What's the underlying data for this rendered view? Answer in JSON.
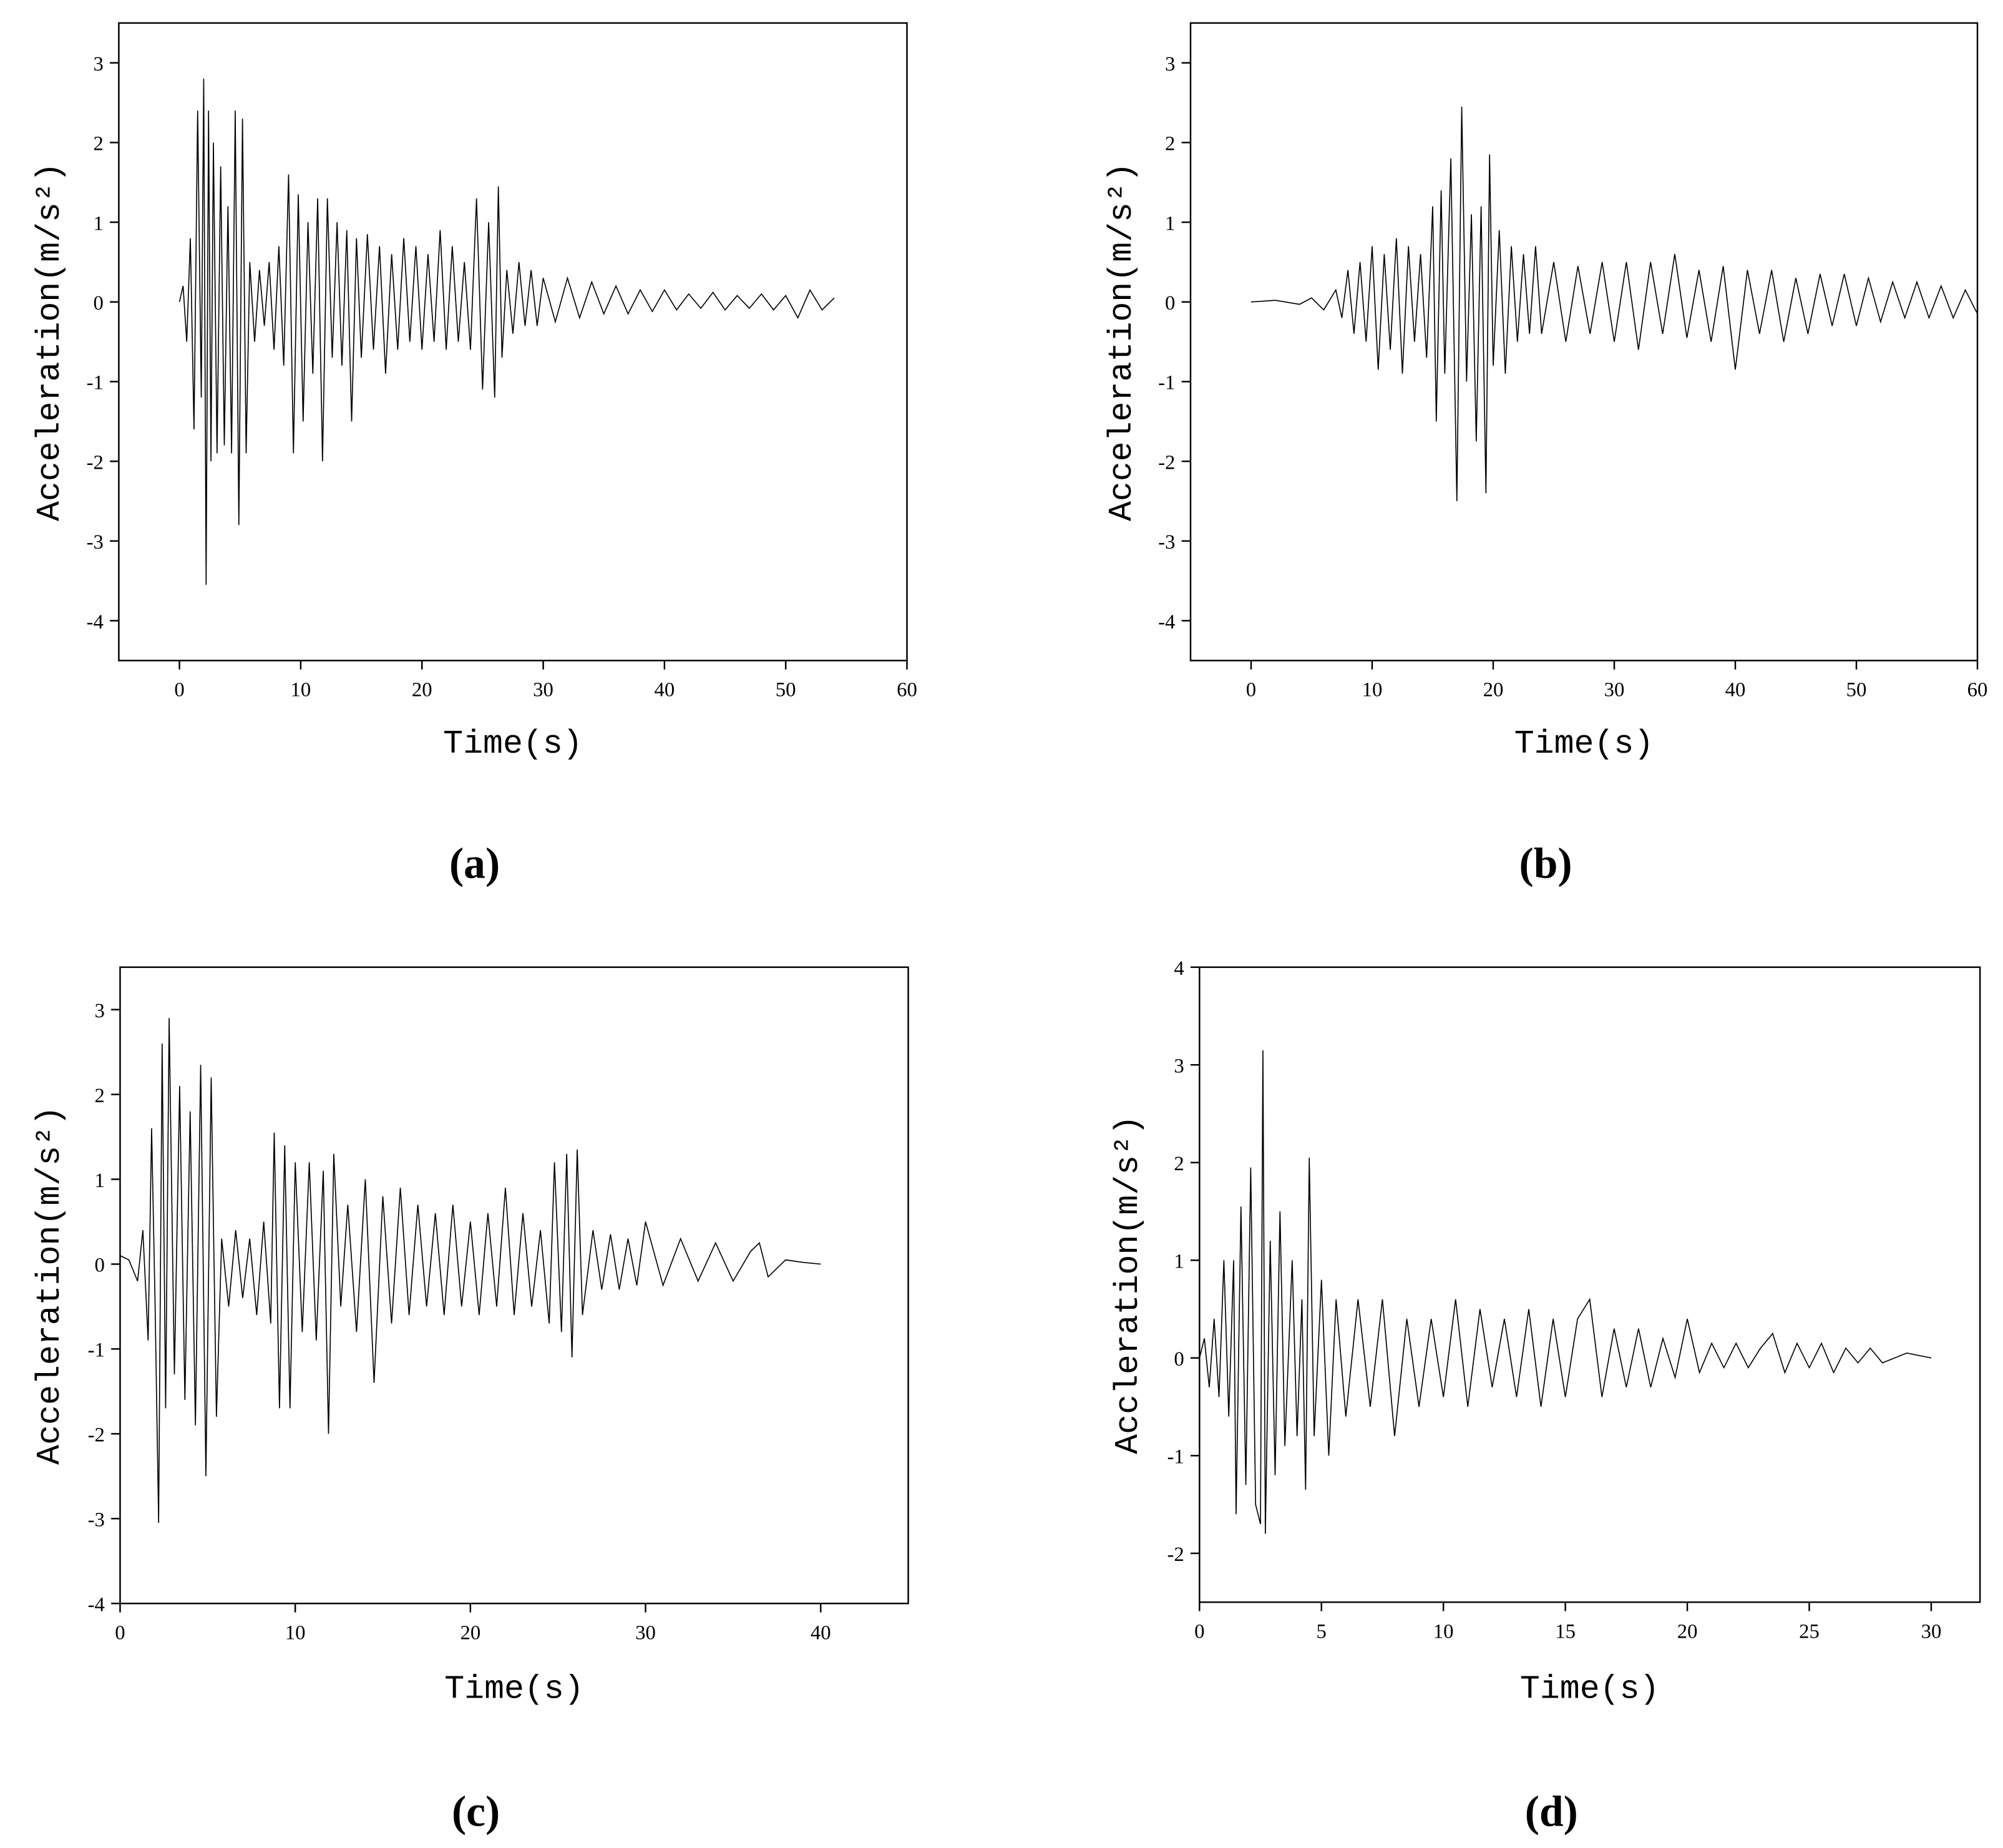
{
  "chart_data": [
    {
      "type": "line",
      "panel_label": "(a)",
      "xlabel": "Time(s)",
      "ylabel": "Acceleration(m/s²)",
      "xlim": [
        -5,
        60
      ],
      "ylim": [
        -4.5,
        3.5
      ],
      "xticks": [
        0,
        10,
        20,
        30,
        40,
        50,
        60
      ],
      "yticks": [
        -4,
        -3,
        -2,
        -1,
        0,
        1,
        2,
        3
      ],
      "x": [
        0,
        0.3,
        0.6,
        0.9,
        1.2,
        1.5,
        1.8,
        2.0,
        2.2,
        2.4,
        2.6,
        2.8,
        3.1,
        3.4,
        3.7,
        4.0,
        4.3,
        4.6,
        4.9,
        5.2,
        5.5,
        5.8,
        6.2,
        6.6,
        7.0,
        7.4,
        7.8,
        8.2,
        8.6,
        9.0,
        9.4,
        9.8,
        10.2,
        10.6,
        11.0,
        11.4,
        11.8,
        12.2,
        12.6,
        13.0,
        13.4,
        13.8,
        14.2,
        14.6,
        15.0,
        15.5,
        16,
        16.5,
        17,
        17.5,
        18,
        18.5,
        19,
        19.5,
        20,
        20.5,
        21,
        21.5,
        22,
        22.5,
        23,
        23.5,
        24,
        24.5,
        25,
        25.5,
        26,
        26.3,
        26.6,
        27,
        27.5,
        28,
        28.5,
        29,
        29.5,
        30,
        31,
        32,
        33,
        34,
        35,
        36,
        37,
        38,
        39,
        40,
        41,
        42,
        43,
        44,
        45,
        46,
        47,
        48,
        49,
        50,
        51,
        52,
        53,
        54
      ],
      "series": [
        {
          "color": "#000000",
          "values": [
            0,
            0.2,
            -0.5,
            0.8,
            -1.6,
            2.4,
            -1.2,
            2.8,
            -3.55,
            2.4,
            -2.0,
            2.0,
            -1.9,
            1.7,
            -1.8,
            1.2,
            -1.9,
            2.4,
            -2.8,
            2.3,
            -1.9,
            0.5,
            -0.5,
            0.4,
            -0.3,
            0.5,
            -0.6,
            0.7,
            -0.8,
            1.6,
            -1.9,
            1.35,
            -1.5,
            1.0,
            -0.9,
            1.3,
            -2.0,
            1.3,
            -0.7,
            1.0,
            -0.8,
            0.9,
            -1.5,
            0.8,
            -0.7,
            0.85,
            -0.6,
            0.7,
            -0.9,
            0.6,
            -0.6,
            0.8,
            -0.5,
            0.7,
            -0.6,
            0.6,
            -0.5,
            0.9,
            -0.6,
            0.7,
            -0.5,
            0.5,
            -0.6,
            1.3,
            -1.1,
            1.0,
            -1.2,
            1.45,
            -0.7,
            0.4,
            -0.4,
            0.5,
            -0.3,
            0.4,
            -0.3,
            0.3,
            -0.25,
            0.3,
            -0.2,
            0.25,
            -0.15,
            0.2,
            -0.15,
            0.15,
            -0.12,
            0.15,
            -0.1,
            0.1,
            -0.08,
            0.12,
            -0.1,
            0.08,
            -0.08,
            0.1,
            -0.1,
            0.08,
            -0.2,
            0.15,
            -0.1,
            0.05
          ]
        }
      ]
    },
    {
      "type": "line",
      "panel_label": "(b)",
      "xlabel": "Time(s)",
      "ylabel": "Acceleration(m/s²)",
      "xlim": [
        -5,
        60
      ],
      "ylim": [
        -4.5,
        3.5
      ],
      "xticks": [
        0,
        10,
        20,
        30,
        40,
        50,
        60
      ],
      "yticks": [
        -4,
        -3,
        -2,
        -1,
        0,
        1,
        2,
        3
      ],
      "x": [
        0,
        2,
        4,
        5,
        6,
        7,
        7.5,
        8,
        8.5,
        9,
        9.5,
        10,
        10.5,
        11,
        11.5,
        12,
        12.5,
        13,
        13.5,
        14,
        14.5,
        15,
        15.3,
        15.7,
        16,
        16.5,
        17,
        17.4,
        17.8,
        18.2,
        18.6,
        19,
        19.4,
        19.7,
        20,
        20.5,
        21,
        21.5,
        22,
        22.5,
        23,
        23.5,
        24,
        25,
        26,
        27,
        28,
        29,
        30,
        31,
        32,
        33,
        34,
        35,
        36,
        37,
        38,
        39,
        40,
        41,
        42,
        43,
        44,
        45,
        46,
        47,
        48,
        49,
        50,
        51,
        52,
        53,
        54,
        55,
        56,
        57,
        58,
        59,
        60
      ],
      "series": [
        {
          "color": "#000000",
          "values": [
            0,
            0.02,
            -0.03,
            0.05,
            -0.1,
            0.15,
            -0.2,
            0.4,
            -0.4,
            0.5,
            -0.5,
            0.7,
            -0.85,
            0.6,
            -0.6,
            0.8,
            -0.9,
            0.7,
            -0.5,
            0.6,
            -0.7,
            1.2,
            -1.5,
            1.4,
            -0.9,
            1.8,
            -2.5,
            2.45,
            -1.0,
            1.1,
            -1.75,
            1.2,
            -2.4,
            1.85,
            -0.8,
            0.9,
            -0.9,
            0.7,
            -0.5,
            0.6,
            -0.4,
            0.7,
            -0.4,
            0.5,
            -0.5,
            0.45,
            -0.4,
            0.5,
            -0.5,
            0.5,
            -0.6,
            0.5,
            -0.4,
            0.6,
            -0.45,
            0.4,
            -0.5,
            0.45,
            -0.85,
            0.4,
            -0.4,
            0.4,
            -0.5,
            0.3,
            -0.4,
            0.35,
            -0.3,
            0.35,
            -0.3,
            0.3,
            -0.25,
            0.25,
            -0.2,
            0.25,
            -0.2,
            0.2,
            -0.2,
            0.15,
            -0.15
          ]
        }
      ]
    },
    {
      "type": "line",
      "panel_label": "(c)",
      "xlabel": "Time(s)",
      "ylabel": "Acceleration(m/s²)",
      "xlim": [
        0,
        45
      ],
      "ylim": [
        -4,
        3.5
      ],
      "xticks": [
        0,
        10,
        20,
        30,
        40
      ],
      "yticks": [
        -4,
        -3,
        -2,
        -1,
        0,
        1,
        2,
        3
      ],
      "x": [
        0,
        0.5,
        1,
        1.3,
        1.6,
        1.8,
        2.0,
        2.2,
        2.4,
        2.6,
        2.8,
        3.1,
        3.4,
        3.7,
        4.0,
        4.3,
        4.6,
        4.9,
        5.2,
        5.5,
        5.8,
        6.2,
        6.6,
        7,
        7.4,
        7.8,
        8.2,
        8.6,
        8.8,
        9.1,
        9.4,
        9.7,
        10,
        10.4,
        10.8,
        11.2,
        11.6,
        11.9,
        12.2,
        12.6,
        13,
        13.5,
        14,
        14.5,
        15,
        15.5,
        16,
        16.5,
        17,
        17.5,
        18,
        18.5,
        19,
        19.5,
        20,
        20.5,
        21,
        21.5,
        22,
        22.5,
        23,
        23.5,
        24,
        24.5,
        24.8,
        25.2,
        25.5,
        25.8,
        26.1,
        26.4,
        27,
        27.5,
        28,
        28.5,
        29,
        29.5,
        30,
        31,
        32,
        33,
        34,
        35,
        36,
        36.5,
        37,
        38,
        39,
        40
      ],
      "series": [
        {
          "color": "#000000",
          "values": [
            0.1,
            0.05,
            -0.2,
            0.4,
            -0.9,
            1.6,
            -0.5,
            -3.05,
            2.6,
            -1.7,
            2.9,
            -1.3,
            2.1,
            -1.6,
            1.8,
            -1.9,
            2.35,
            -2.5,
            2.2,
            -1.8,
            0.3,
            -0.5,
            0.4,
            -0.4,
            0.3,
            -0.6,
            0.5,
            -0.7,
            1.55,
            -1.7,
            1.4,
            -1.7,
            1.2,
            -0.8,
            1.2,
            -0.9,
            1.1,
            -2.0,
            1.3,
            -0.5,
            0.7,
            -0.8,
            1.0,
            -1.4,
            0.8,
            -0.7,
            0.9,
            -0.6,
            0.7,
            -0.5,
            0.6,
            -0.6,
            0.7,
            -0.5,
            0.5,
            -0.6,
            0.6,
            -0.5,
            0.9,
            -0.6,
            0.6,
            -0.5,
            0.4,
            -0.7,
            1.2,
            -0.8,
            1.3,
            -1.1,
            1.35,
            -0.6,
            0.4,
            -0.3,
            0.35,
            -0.3,
            0.3,
            -0.25,
            0.5,
            -0.25,
            0.3,
            -0.2,
            0.25,
            -0.2,
            0.15,
            0.25,
            -0.15,
            0.05,
            0.02,
            0
          ]
        }
      ]
    },
    {
      "type": "line",
      "panel_label": "(d)",
      "xlabel": "Time(s)",
      "ylabel": "Accleration(m/s²)",
      "xlim": [
        0,
        32
      ],
      "ylim": [
        -2.5,
        4
      ],
      "xticks": [
        0,
        5,
        10,
        15,
        20,
        25,
        30
      ],
      "yticks": [
        -2,
        -1,
        0,
        1,
        2,
        3,
        4
      ],
      "x": [
        0,
        0.2,
        0.4,
        0.6,
        0.8,
        1.0,
        1.2,
        1.4,
        1.5,
        1.7,
        1.9,
        2.1,
        2.3,
        2.5,
        2.6,
        2.7,
        2.9,
        3.1,
        3.3,
        3.5,
        3.8,
        4.0,
        4.2,
        4.35,
        4.5,
        4.7,
        5,
        5.3,
        5.6,
        6,
        6.5,
        7,
        7.5,
        8,
        8.5,
        9,
        9.5,
        10,
        10.5,
        11,
        11.5,
        12,
        12.5,
        13,
        13.5,
        14,
        14.5,
        15,
        15.5,
        16,
        16.5,
        17,
        17.5,
        18,
        18.5,
        19,
        19.5,
        20,
        20.5,
        21,
        21.5,
        22,
        22.5,
        23,
        23.5,
        24,
        24.5,
        25,
        25.5,
        26,
        26.5,
        27,
        27.5,
        28,
        29,
        30
      ],
      "series": [
        {
          "color": "#000000",
          "values": [
            0,
            0.2,
            -0.3,
            0.4,
            -0.4,
            1.0,
            -0.6,
            1.0,
            -1.6,
            1.55,
            -1.3,
            1.95,
            -1.5,
            -1.7,
            3.15,
            -1.8,
            1.2,
            -1.2,
            1.5,
            -0.9,
            1.0,
            -0.8,
            0.6,
            -1.35,
            2.05,
            -0.8,
            0.8,
            -1.0,
            0.6,
            -0.6,
            0.6,
            -0.5,
            0.6,
            -0.8,
            0.4,
            -0.5,
            0.4,
            -0.4,
            0.6,
            -0.5,
            0.5,
            -0.3,
            0.4,
            -0.4,
            0.5,
            -0.5,
            0.4,
            -0.4,
            0.4,
            0.6,
            -0.4,
            0.3,
            -0.3,
            0.3,
            -0.3,
            0.2,
            -0.2,
            0.4,
            -0.15,
            0.15,
            -0.1,
            0.15,
            -0.1,
            0.1,
            0.25,
            -0.15,
            0.15,
            -0.1,
            0.15,
            -0.15,
            0.1,
            -0.05,
            0.1,
            -0.05,
            0.05,
            0
          ]
        }
      ]
    }
  ]
}
